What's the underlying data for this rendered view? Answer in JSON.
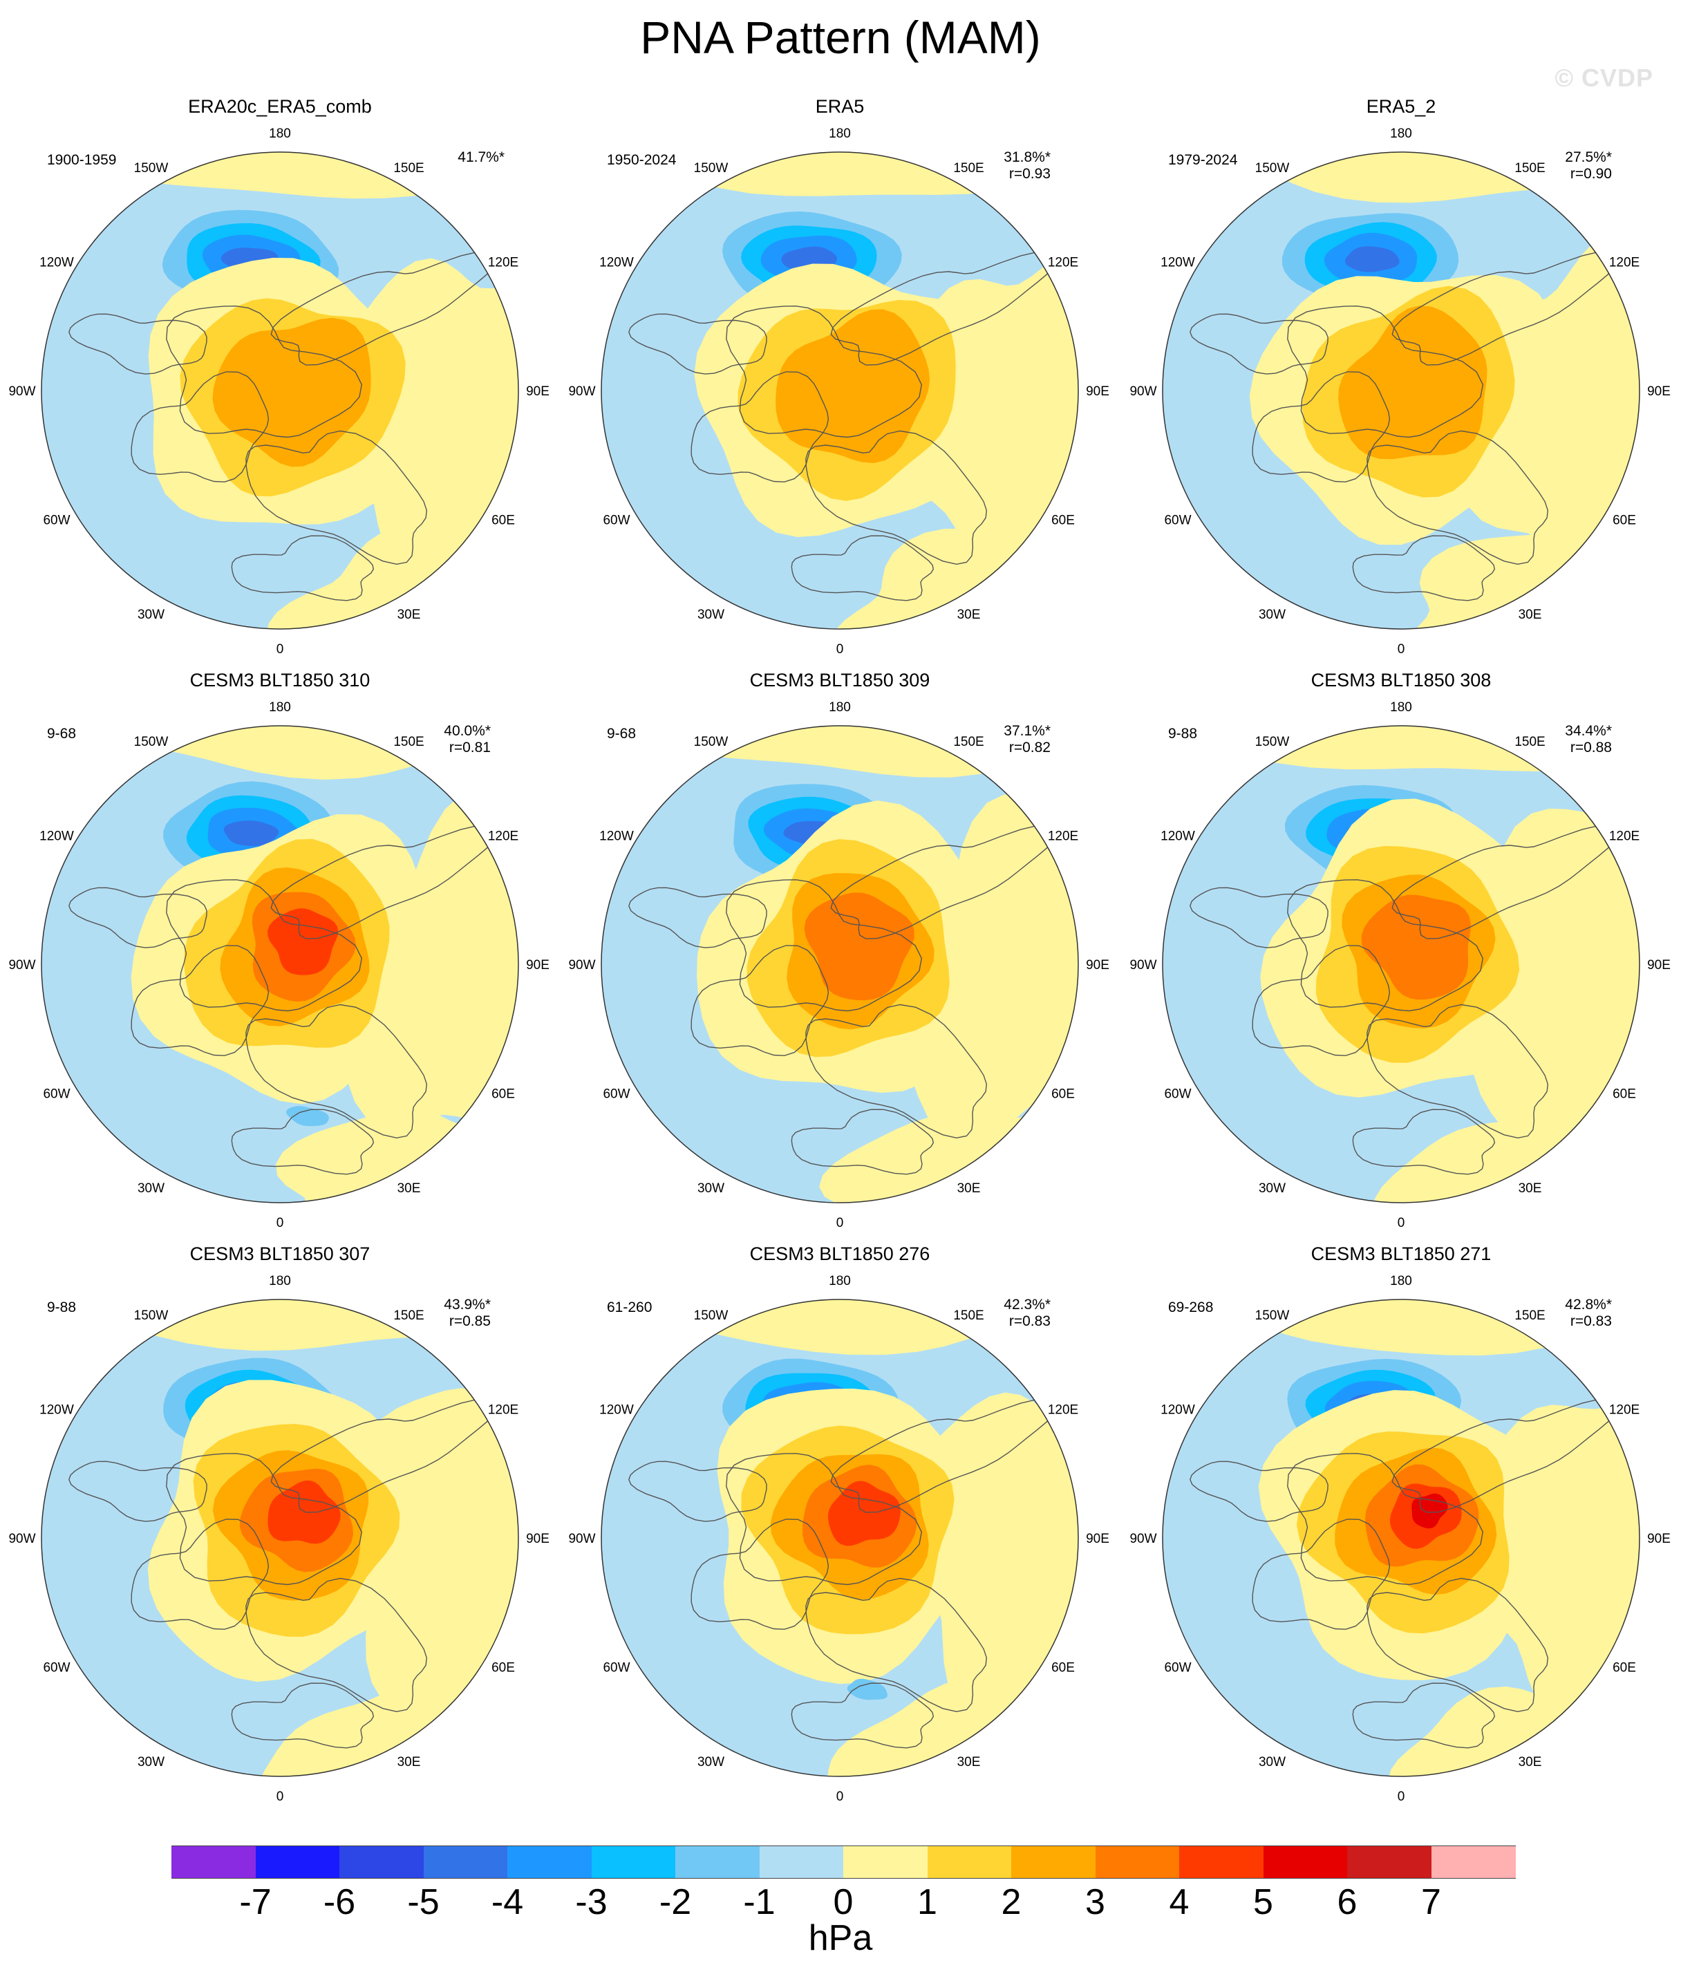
{
  "title": "PNA Pattern (MAM)",
  "watermark": "© CVDP",
  "lon_labels": [
    "180",
    "150E",
    "120E",
    "90E",
    "60E",
    "30E",
    "0",
    "30W",
    "60W",
    "90W",
    "120W",
    "150W"
  ],
  "panels": [
    {
      "title": "ERA20c_ERA5_comb",
      "years": "1900-1959",
      "pct": "41.7%*",
      "r": "",
      "center": [
        -0.34,
        0.49
      ],
      "neg": 1,
      "negCenter": [
        -0.12,
        -0.48
      ],
      "negLevels": 3
    },
    {
      "title": "ERA5",
      "years": "1950-2024",
      "pct": "31.8%*",
      "r": "r=0.93",
      "center": [
        -0.34,
        0.54
      ],
      "neg": 1,
      "negCenter": [
        -0.12,
        -0.52
      ],
      "negLevels": 3
    },
    {
      "title": "ERA5_2",
      "years": "1979-2024",
      "pct": "27.5%*",
      "r": "r=0.90",
      "center": [
        -0.32,
        0.52
      ],
      "neg": 1,
      "negCenter": [
        -0.08,
        -0.5
      ],
      "negLevels": 3
    },
    {
      "title": "CESM3 BLT1850 310",
      "years": "9-68",
      "pct": "40.0%*",
      "r": "r=0.81",
      "center": [
        -0.32,
        0.52
      ],
      "neg": 1,
      "negCenter": [
        -0.12,
        -0.48
      ],
      "negLevels": 5
    },
    {
      "title": "CESM3 BLT1850 309",
      "years": "9-68",
      "pct": "37.1%*",
      "r": "r=0.82",
      "center": [
        -0.28,
        0.52
      ],
      "neg": 1,
      "negCenter": [
        0.06,
        -0.34
      ],
      "negLevels": 4
    },
    {
      "title": "CESM3 BLT1850 308",
      "years": "9-88",
      "pct": "34.4%*",
      "r": "r=0.88",
      "center": [
        -0.26,
        0.52
      ],
      "neg": 1,
      "negCenter": [
        0.02,
        -0.3
      ],
      "negLevels": 4
    },
    {
      "title": "CESM3 BLT1850 307",
      "years": "9-88",
      "pct": "43.9%*",
      "r": "r=0.85",
      "center": [
        -0.3,
        0.52
      ],
      "neg": 1,
      "negCenter": [
        0.04,
        -0.26
      ],
      "negLevels": 5
    },
    {
      "title": "CESM3 BLT1850 276",
      "years": "61-260",
      "pct": "42.3%*",
      "r": "r=0.83",
      "center": [
        -0.34,
        0.52
      ],
      "neg": 1,
      "negCenter": [
        -0.02,
        -0.22
      ],
      "negLevels": 5
    },
    {
      "title": "CESM3 BLT1850 271",
      "years": "69-268",
      "pct": "42.8%*",
      "r": "r=0.83",
      "center": [
        -0.3,
        0.54
      ],
      "neg": 1,
      "negCenter": [
        0.02,
        -0.18
      ],
      "negLevels": 6
    }
  ],
  "colorbar": {
    "units": "hPa",
    "ticks": [
      "-7",
      "-6",
      "-5",
      "-4",
      "-3",
      "-2",
      "-1",
      "0",
      "1",
      "2",
      "3",
      "4",
      "5",
      "6",
      "7"
    ],
    "colors": [
      "#8a2be2",
      "#1a1aff",
      "#2d46e6",
      "#3373e8",
      "#1e98ff",
      "#0ac0ff",
      "#72c8f4",
      "#b2def4",
      "#fff59c",
      "#ffd533",
      "#ffaa00",
      "#ff7a00",
      "#ff3a00",
      "#e60000",
      "#cc1c1c",
      "#ffb0b0"
    ]
  }
}
